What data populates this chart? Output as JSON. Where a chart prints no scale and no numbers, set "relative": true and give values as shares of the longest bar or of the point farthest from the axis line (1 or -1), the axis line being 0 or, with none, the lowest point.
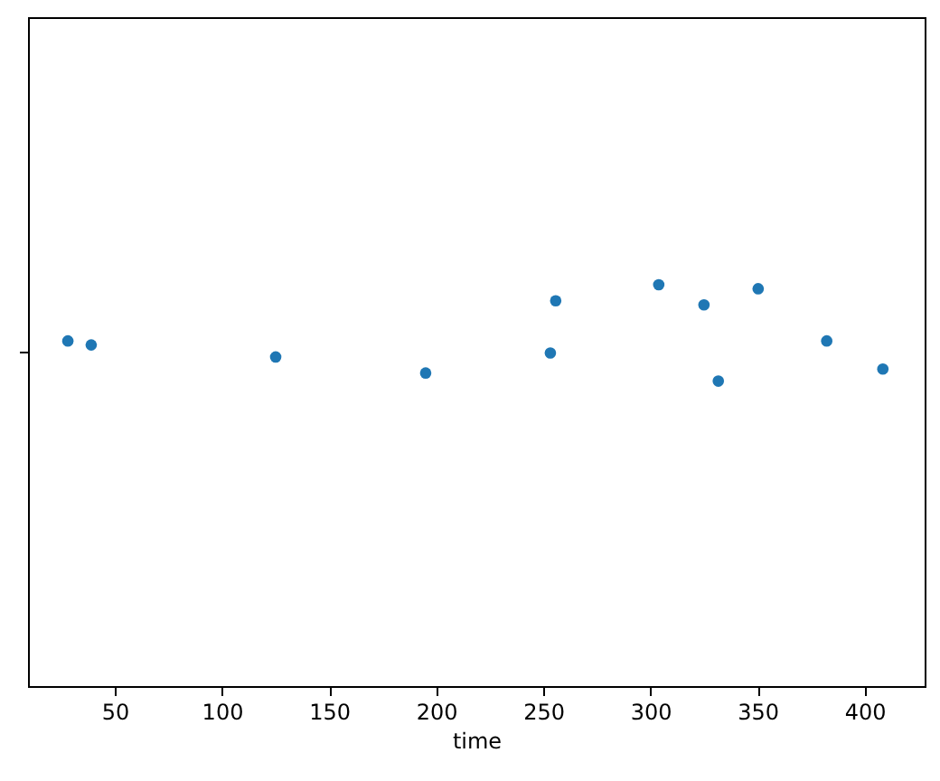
{
  "chart_data": {
    "type": "scatter",
    "xlabel": "time",
    "x": [
      28.1,
      39.0,
      125.1,
      195.1,
      253.3,
      255.8,
      303.9,
      325.0,
      331.7,
      350.3,
      382.3,
      408.5
    ],
    "values": [
      0.86,
      0.85,
      0.82,
      0.78,
      0.83,
      0.96,
      1.0,
      0.95,
      0.76,
      0.99,
      0.86,
      0.79
    ],
    "relative": true,
    "color": "#1f77b4",
    "marker": "circle",
    "xlim": [
      9.5,
      428
    ],
    "xticks": [
      50,
      100,
      150,
      200,
      250,
      300,
      350,
      400
    ],
    "tick_labels": "x",
    "grid": false,
    "legend": false
  }
}
